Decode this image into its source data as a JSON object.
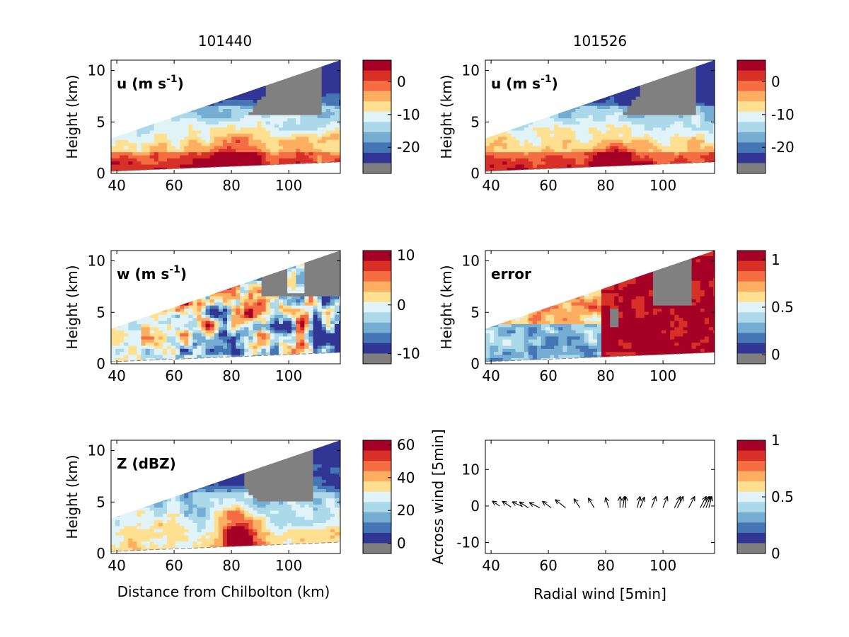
{
  "figure": {
    "column_titles": [
      "101440",
      "101526"
    ],
    "shared_xlabel": "Distance from Chilbolton (km)",
    "ylabel": "Height (km)"
  },
  "colors": {
    "palette": [
      "#a50026",
      "#d73027",
      "#f46d43",
      "#fdae61",
      "#fee090",
      "#e0f3f8",
      "#abd9e9",
      "#74add1",
      "#4575b4",
      "#313695",
      "#7f7f7f"
    ],
    "no_data": "#808080"
  },
  "chart_data": [
    {
      "id": "u_101440",
      "type": "heatmap",
      "label": "u (m s",
      "label_sup": "-1",
      "label_end": ")",
      "xlim": [
        38,
        118
      ],
      "ylim": [
        0,
        11
      ],
      "xticks": [
        40,
        60,
        80,
        100
      ],
      "yticks": [
        0,
        5,
        10
      ],
      "colorbar": {
        "ticks": [
          "0",
          "-10",
          "-20"
        ],
        "tick_fracs": [
          0.19,
          0.48,
          0.77
        ]
      },
      "field": "u",
      "column": 0,
      "row": 0
    },
    {
      "id": "u_101526",
      "type": "heatmap",
      "label": "u (m s",
      "label_sup": "-1",
      "label_end": ")",
      "xlim": [
        38,
        118
      ],
      "ylim": [
        0,
        11
      ],
      "xticks": [
        40,
        60,
        80,
        100
      ],
      "yticks": [
        0,
        5,
        10
      ],
      "colorbar": {
        "ticks": [
          "0",
          "-10",
          "-20"
        ],
        "tick_fracs": [
          0.19,
          0.48,
          0.77
        ]
      },
      "field": "u2",
      "column": 1,
      "row": 0
    },
    {
      "id": "w_101440",
      "type": "heatmap",
      "label": "w (m s",
      "label_sup": "-1",
      "label_end": ")",
      "xlim": [
        38,
        118
      ],
      "ylim": [
        0,
        11
      ],
      "xticks": [
        40,
        60,
        80,
        100
      ],
      "yticks": [
        0,
        5,
        10
      ],
      "colorbar": {
        "ticks": [
          "10",
          "0",
          "-10"
        ],
        "tick_fracs": [
          0.04,
          0.48,
          0.91
        ]
      },
      "field": "w",
      "column": 0,
      "row": 1
    },
    {
      "id": "error_101526",
      "type": "heatmap",
      "label": "error",
      "label_sup": "",
      "label_end": "",
      "xlim": [
        38,
        118
      ],
      "ylim": [
        0,
        11
      ],
      "xticks": [
        40,
        60,
        80,
        100
      ],
      "yticks": [
        0,
        5,
        10
      ],
      "colorbar": {
        "ticks": [
          "1",
          "0.5",
          "0"
        ],
        "tick_fracs": [
          0.08,
          0.5,
          0.92
        ]
      },
      "field": "err",
      "column": 1,
      "row": 1
    },
    {
      "id": "z_101440",
      "type": "heatmap",
      "label": "Z (dBZ)",
      "label_sup": "",
      "label_end": "",
      "xlim": [
        38,
        118
      ],
      "ylim": [
        0,
        11
      ],
      "xticks": [
        40,
        60,
        80,
        100
      ],
      "yticks": [
        0,
        5,
        10
      ],
      "colorbar": {
        "ticks": [
          "60",
          "40",
          "20",
          "0"
        ],
        "tick_fracs": [
          0.04,
          0.33,
          0.62,
          0.91
        ]
      },
      "field": "z",
      "column": 0,
      "row": 2
    },
    {
      "id": "quiver_101526",
      "type": "scatter",
      "xlabel": "Radial wind [5min]",
      "ylabel": "Across wind [5min]",
      "xlim": [
        38,
        118
      ],
      "ylim": [
        -13,
        18
      ],
      "xticks": [
        40,
        60,
        80,
        100
      ],
      "yticks": [
        -10,
        0,
        10
      ],
      "colorbar": {
        "ticks": [
          "1",
          "0.5",
          "0"
        ],
        "tick_fracs": [
          0.0,
          0.5,
          1.0
        ]
      },
      "arrows": [
        {
          "x": 43,
          "y": 2.5,
          "u": -2.5,
          "v": 1.5
        },
        {
          "x": 47,
          "y": 2.2,
          "u": -3.0,
          "v": 1.8
        },
        {
          "x": 51,
          "y": 2.3,
          "u": -3.5,
          "v": 1.5
        },
        {
          "x": 53,
          "y": 2.0,
          "u": -3.0,
          "v": 1.8
        },
        {
          "x": 57,
          "y": 2.0,
          "u": -3.5,
          "v": 1.6
        },
        {
          "x": 61,
          "y": 2.0,
          "u": -3.0,
          "v": 2.0
        },
        {
          "x": 66,
          "y": 2.0,
          "u": -3.5,
          "v": 2.5
        },
        {
          "x": 71,
          "y": 2.0,
          "u": -2.0,
          "v": 2.8
        },
        {
          "x": 76,
          "y": 2.0,
          "u": -2.0,
          "v": 3.0
        },
        {
          "x": 81,
          "y": 2.0,
          "u": -1.0,
          "v": 3.2
        },
        {
          "x": 85,
          "y": 2.0,
          "u": 0.0,
          "v": 3.5
        },
        {
          "x": 86,
          "y": 2.0,
          "u": 0.5,
          "v": 3.5
        },
        {
          "x": 87,
          "y": 2.0,
          "u": 0.0,
          "v": 3.5
        },
        {
          "x": 91,
          "y": 2.0,
          "u": 1.0,
          "v": 3.5
        },
        {
          "x": 92,
          "y": 2.0,
          "u": 1.5,
          "v": 3.3
        },
        {
          "x": 96,
          "y": 2.0,
          "u": 1.5,
          "v": 3.5
        },
        {
          "x": 100,
          "y": 2.0,
          "u": 1.5,
          "v": 3.5
        },
        {
          "x": 104,
          "y": 2.0,
          "u": 2.0,
          "v": 3.5
        },
        {
          "x": 105,
          "y": 2.0,
          "u": 2.0,
          "v": 3.5
        },
        {
          "x": 109,
          "y": 2.0,
          "u": 2.0,
          "v": 3.5
        },
        {
          "x": 113,
          "y": 2.0,
          "u": 2.0,
          "v": 3.5
        },
        {
          "x": 114,
          "y": 2.0,
          "u": 2.0,
          "v": 3.5
        },
        {
          "x": 115,
          "y": 2.0,
          "u": 1.5,
          "v": 3.5
        },
        {
          "x": 116,
          "y": 2.0,
          "u": 1.0,
          "v": 3.5
        }
      ],
      "column": 1,
      "row": 2
    }
  ]
}
